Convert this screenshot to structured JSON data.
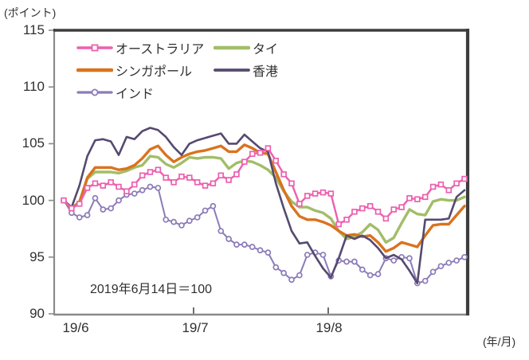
{
  "chart_data": {
    "type": "line",
    "title": "",
    "ylabel_unit": "(ポイント)",
    "xlabel_unit": "(年/月)",
    "annotation": "2019年6月14日＝100",
    "ylim": [
      90,
      115
    ],
    "y_ticks": [
      115,
      110,
      105,
      100,
      95,
      90
    ],
    "x_tick_labels": [
      "19/6",
      "19/7",
      "19/8"
    ],
    "grid": false,
    "legend_position": "top-left-inside",
    "series": [
      {
        "key": "australia",
        "name": "オーストラリア",
        "color": "#EC60AF",
        "marker": "square",
        "values": [
          100,
          99.3,
          99.7,
          101.1,
          101.5,
          101.3,
          101.6,
          101.2,
          100.8,
          101.4,
          102.2,
          102.5,
          102.7,
          102,
          101.6,
          102.1,
          102,
          101.6,
          101.3,
          101.5,
          102.2,
          101.8,
          102.3,
          103.4,
          104.1,
          104.2,
          104.6,
          103.5,
          102.3,
          101.5,
          99.7,
          100.4,
          100.6,
          100.7,
          100.6,
          97.9,
          98.3,
          99,
          99.3,
          99.5,
          99,
          98.4,
          99.2,
          99.4,
          100.2,
          100.1,
          100.3,
          101.2,
          101.4,
          100.9,
          101.5,
          101.9
        ]
      },
      {
        "key": "singapore",
        "name": "シンガポール",
        "color": "#D9731E",
        "marker": "none",
        "values": [
          100,
          99.3,
          99.8,
          102,
          102.9,
          102.9,
          102.9,
          102.7,
          102.8,
          103.1,
          103.7,
          104.5,
          104.8,
          104,
          103.4,
          103.8,
          104.1,
          104.3,
          104.4,
          104.6,
          104.8,
          104.3,
          104.3,
          104.9,
          104.6,
          104.2,
          104.1,
          102.5,
          100.9,
          99.5,
          98.6,
          98.3,
          98.3,
          98.1,
          97.8,
          97.3,
          96.9,
          97,
          96.8,
          96.9,
          96.3,
          95.5,
          95.8,
          96.3,
          96.1,
          95.9,
          96.9,
          97.8,
          97.9,
          97.9,
          98.7,
          99.5
        ]
      },
      {
        "key": "india",
        "name": "インド",
        "color": "#8C7BB8",
        "marker": "circle",
        "values": [
          100,
          98.9,
          98.5,
          98.7,
          100.2,
          99.2,
          99.3,
          100,
          100.5,
          100.6,
          100.9,
          101.2,
          101.1,
          98.3,
          98.1,
          97.8,
          98.2,
          98.5,
          99.1,
          99.5,
          97.3,
          96.6,
          96.1,
          96.1,
          95.9,
          95.6,
          95.4,
          94.1,
          93.6,
          93,
          93.4,
          95.2,
          95.4,
          95.2,
          93.3,
          94.7,
          94.6,
          94.6,
          93.9,
          93.4,
          93.5,
          94.9,
          94.7,
          95,
          94.9,
          92.7,
          92.9,
          93.7,
          94.2,
          94.5,
          94.7,
          95
        ]
      },
      {
        "key": "thailand",
        "name": "タイ",
        "color": "#A2BD68",
        "marker": "none",
        "values": [
          100,
          99.3,
          99.9,
          101.9,
          102.5,
          102.5,
          102.5,
          102.4,
          102.6,
          102.9,
          103.1,
          103.9,
          103.8,
          103.2,
          102.9,
          103.3,
          103.8,
          103.7,
          103.8,
          103.8,
          103.7,
          102.8,
          103.3,
          103.5,
          103.4,
          103.1,
          102.7,
          102,
          100.8,
          99.9,
          99.4,
          99.4,
          99.1,
          98.9,
          98.4,
          97.3,
          96.6,
          96.8,
          97.2,
          97.9,
          97.4,
          96.3,
          96.7,
          98,
          99.2,
          98.8,
          98.7,
          99.9,
          100.1,
          100,
          100,
          100.3
        ]
      },
      {
        "key": "hongkong",
        "name": "香港",
        "color": "#564A70",
        "marker": "none",
        "values": [
          100,
          99.4,
          101.3,
          103.9,
          105.3,
          105.4,
          105.2,
          104,
          105.6,
          105.4,
          106.1,
          106.4,
          106.2,
          105.6,
          104.7,
          104,
          105,
          105.3,
          105.5,
          105.7,
          105.9,
          105,
          105,
          105.8,
          105.2,
          104.6,
          104.3,
          101.5,
          99.3,
          97.3,
          96.2,
          96.3,
          95.1,
          94,
          93.2,
          94.9,
          96.9,
          96.6,
          96.9,
          96.5,
          95.8,
          94.9,
          95.2,
          94.8,
          93.8,
          92.7,
          98.3,
          98.3,
          98.3,
          98.4,
          100.3,
          100.9
        ]
      }
    ]
  }
}
